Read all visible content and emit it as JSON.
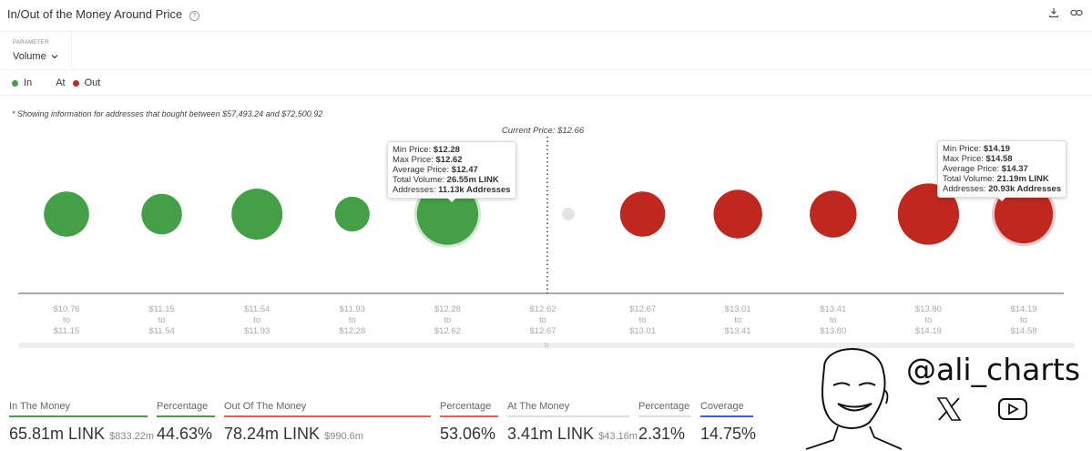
{
  "header": {
    "title": "In/Out of the Money Around Price",
    "help_icon": "question-circle-icon",
    "actions": [
      {
        "name": "download",
        "icon": "download-icon"
      },
      {
        "name": "link",
        "icon": "link-icon"
      }
    ]
  },
  "parameter": {
    "label": "PARAMETER",
    "selected": "Volume"
  },
  "legend": [
    {
      "label": "In",
      "color": "#43a047"
    },
    {
      "label": "At",
      "color": null
    },
    {
      "label": "Out",
      "color": "#c62828"
    }
  ],
  "note": "* Showing information for addresses that bought between $57,493.24 and $72,500.92",
  "chart_data": {
    "type": "scatter",
    "subtype": "bubble",
    "title": "In/Out of the Money Around Price",
    "current_price_label": "Current Price: $12.66",
    "current_price": 12.66,
    "categories": [
      {
        "from": "$10.76",
        "to": "$11.15",
        "status": "In"
      },
      {
        "from": "$11.15",
        "to": "$11.54",
        "status": "In"
      },
      {
        "from": "$11.54",
        "to": "$11.93",
        "status": "In"
      },
      {
        "from": "$11.93",
        "to": "$12.28",
        "status": "In"
      },
      {
        "from": "$12.28",
        "to": "$12.62",
        "status": "In"
      },
      {
        "from": "$12.62",
        "to": "$12.67",
        "status": "At"
      },
      {
        "from": "$12.67",
        "to": "$13.01",
        "status": "Out"
      },
      {
        "from": "$13.01",
        "to": "$13.41",
        "status": "Out"
      },
      {
        "from": "$13.41",
        "to": "$13.80",
        "status": "Out"
      },
      {
        "from": "$13.80",
        "to": "$14.19",
        "status": "Out"
      },
      {
        "from": "$14.19",
        "to": "$14.58",
        "status": "Out"
      }
    ],
    "tick_joiner": "to",
    "relative_volume": [
      0.72,
      0.64,
      0.82,
      0.54,
      1.0,
      0.22,
      0.72,
      0.78,
      0.75,
      1.0,
      0.95
    ],
    "colors": {
      "In": "#43a047",
      "At": "#e3e3e3",
      "Out": "#c0281f"
    },
    "tooltips": [
      {
        "index": 4,
        "lines": [
          {
            "k": "Min Price: ",
            "v": "$12.28"
          },
          {
            "k": "Max Price: ",
            "v": "$12.62"
          },
          {
            "k": "Average Price: ",
            "v": "$12.47"
          },
          {
            "k": "Total Volume: ",
            "v": "26.55m LINK"
          },
          {
            "k": "Addresses: ",
            "v": "11.13k Addresses"
          }
        ]
      },
      {
        "index": 10,
        "lines": [
          {
            "k": "Min Price: ",
            "v": "$14.19"
          },
          {
            "k": "Max Price: ",
            "v": "$14.58"
          },
          {
            "k": "Average Price: ",
            "v": "$14.37"
          },
          {
            "k": "Total Volume: ",
            "v": "21.19m LINK"
          },
          {
            "k": "Addresses: ",
            "v": "20.93k Addresses"
          }
        ]
      }
    ]
  },
  "stats": [
    {
      "label": "In The Money",
      "value": "65.81m LINK",
      "sub": "$833.22m",
      "color": "#43a047"
    },
    {
      "label": "Percentage",
      "value": "44.63%",
      "sub": "",
      "color": "#43a047"
    },
    {
      "label": "Out Of The Money",
      "value": "78.24m LINK",
      "sub": "$990.6m",
      "color": "#e0624f"
    },
    {
      "label": "Percentage",
      "value": "53.06%",
      "sub": "",
      "color": "#e0624f"
    },
    {
      "label": "At The Money",
      "value": "3.41m LINK",
      "sub": "$43.16m",
      "color": "#dddddd"
    },
    {
      "label": "Percentage",
      "value": "2.31%",
      "sub": "",
      "color": "#dddddd"
    },
    {
      "label": "Coverage",
      "value": "14.75%",
      "sub": "",
      "color": "#3f5bd6"
    }
  ],
  "branding": {
    "handle": "@ali_charts",
    "icons": [
      "x-logo-icon",
      "youtube-icon"
    ]
  }
}
